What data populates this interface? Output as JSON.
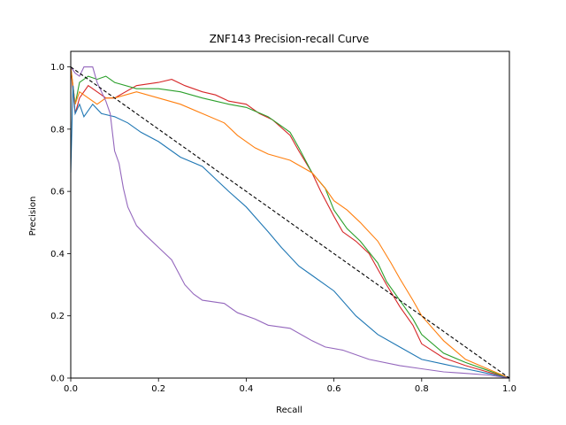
{
  "chart_data": {
    "type": "line",
    "title": "ZNF143 Precision-recall Curve",
    "xlabel": "Recall",
    "ylabel": "Precision",
    "xlim": [
      0.0,
      1.0
    ],
    "ylim": [
      0.0,
      1.05
    ],
    "xticks": [
      "0.0",
      "0.2",
      "0.4",
      "0.6",
      "0.8",
      "1.0"
    ],
    "yticks": [
      "0.0",
      "0.2",
      "0.4",
      "0.6",
      "0.8",
      "1.0"
    ],
    "grid": false,
    "legend": "none",
    "series": [
      {
        "color": "#d62728",
        "x": [
          0.0,
          0.01,
          0.02,
          0.04,
          0.06,
          0.08,
          0.1,
          0.15,
          0.2,
          0.23,
          0.26,
          0.3,
          0.33,
          0.36,
          0.4,
          0.43,
          0.46,
          0.5,
          0.52,
          0.55,
          0.57,
          0.6,
          0.62,
          0.65,
          0.68,
          0.7,
          0.72,
          0.75,
          0.78,
          0.8,
          0.85,
          0.9,
          0.95,
          1.0
        ],
        "y": [
          1.0,
          0.85,
          0.9,
          0.94,
          0.92,
          0.9,
          0.9,
          0.94,
          0.95,
          0.96,
          0.94,
          0.92,
          0.91,
          0.89,
          0.88,
          0.85,
          0.83,
          0.78,
          0.73,
          0.66,
          0.6,
          0.52,
          0.47,
          0.44,
          0.4,
          0.35,
          0.3,
          0.23,
          0.17,
          0.11,
          0.065,
          0.04,
          0.02,
          0.0
        ]
      },
      {
        "color": "#2ca02c",
        "x": [
          0.0,
          0.01,
          0.02,
          0.04,
          0.06,
          0.08,
          0.1,
          0.15,
          0.2,
          0.25,
          0.3,
          0.33,
          0.36,
          0.4,
          0.45,
          0.48,
          0.5,
          0.52,
          0.55,
          0.58,
          0.6,
          0.63,
          0.66,
          0.7,
          0.72,
          0.75,
          0.78,
          0.8,
          0.85,
          0.9,
          0.95,
          1.0
        ],
        "y": [
          1.0,
          0.88,
          0.95,
          0.97,
          0.96,
          0.97,
          0.95,
          0.93,
          0.93,
          0.92,
          0.9,
          0.89,
          0.88,
          0.87,
          0.84,
          0.81,
          0.79,
          0.74,
          0.66,
          0.61,
          0.54,
          0.48,
          0.44,
          0.37,
          0.31,
          0.25,
          0.19,
          0.14,
          0.08,
          0.05,
          0.025,
          0.0
        ]
      },
      {
        "color": "#ff7f0e",
        "x": [
          0.0,
          0.01,
          0.02,
          0.04,
          0.06,
          0.08,
          0.1,
          0.15,
          0.2,
          0.25,
          0.3,
          0.35,
          0.38,
          0.42,
          0.45,
          0.5,
          0.55,
          0.58,
          0.6,
          0.63,
          0.66,
          0.7,
          0.73,
          0.75,
          0.78,
          0.8,
          0.85,
          0.9,
          0.95,
          1.0
        ],
        "y": [
          1.0,
          0.88,
          0.92,
          0.9,
          0.88,
          0.9,
          0.9,
          0.92,
          0.9,
          0.88,
          0.85,
          0.82,
          0.78,
          0.74,
          0.72,
          0.7,
          0.66,
          0.61,
          0.57,
          0.54,
          0.5,
          0.44,
          0.37,
          0.32,
          0.25,
          0.2,
          0.12,
          0.06,
          0.03,
          0.0
        ]
      },
      {
        "color": "#1f77b4",
        "x": [
          0.0,
          0.005,
          0.01,
          0.02,
          0.03,
          0.05,
          0.07,
          0.1,
          0.13,
          0.16,
          0.2,
          0.25,
          0.3,
          0.33,
          0.36,
          0.4,
          0.45,
          0.48,
          0.52,
          0.55,
          0.6,
          0.65,
          0.7,
          0.75,
          0.8,
          0.85,
          0.9,
          0.95,
          1.0
        ],
        "y": [
          0.66,
          0.94,
          0.85,
          0.88,
          0.84,
          0.88,
          0.85,
          0.84,
          0.82,
          0.79,
          0.76,
          0.71,
          0.68,
          0.64,
          0.6,
          0.55,
          0.47,
          0.42,
          0.36,
          0.33,
          0.28,
          0.2,
          0.14,
          0.1,
          0.06,
          0.045,
          0.03,
          0.015,
          0.0
        ]
      },
      {
        "color": "#9467bd",
        "x": [
          0.0,
          0.01,
          0.02,
          0.03,
          0.05,
          0.06,
          0.08,
          0.09,
          0.1,
          0.11,
          0.12,
          0.13,
          0.15,
          0.17,
          0.2,
          0.23,
          0.26,
          0.28,
          0.3,
          0.35,
          0.38,
          0.42,
          0.45,
          0.5,
          0.55,
          0.58,
          0.62,
          0.68,
          0.75,
          0.8,
          0.85,
          0.9,
          0.95,
          1.0
        ],
        "y": [
          1.0,
          0.98,
          0.97,
          1.0,
          1.0,
          0.95,
          0.89,
          0.85,
          0.73,
          0.69,
          0.61,
          0.55,
          0.49,
          0.46,
          0.42,
          0.38,
          0.3,
          0.27,
          0.25,
          0.24,
          0.21,
          0.19,
          0.17,
          0.16,
          0.12,
          0.1,
          0.09,
          0.06,
          0.04,
          0.03,
          0.02,
          0.015,
          0.01,
          0.0
        ]
      },
      {
        "color": "#000000",
        "dashed": true,
        "x": [
          0.0,
          1.0
        ],
        "y": [
          1.0,
          0.0
        ]
      }
    ]
  }
}
